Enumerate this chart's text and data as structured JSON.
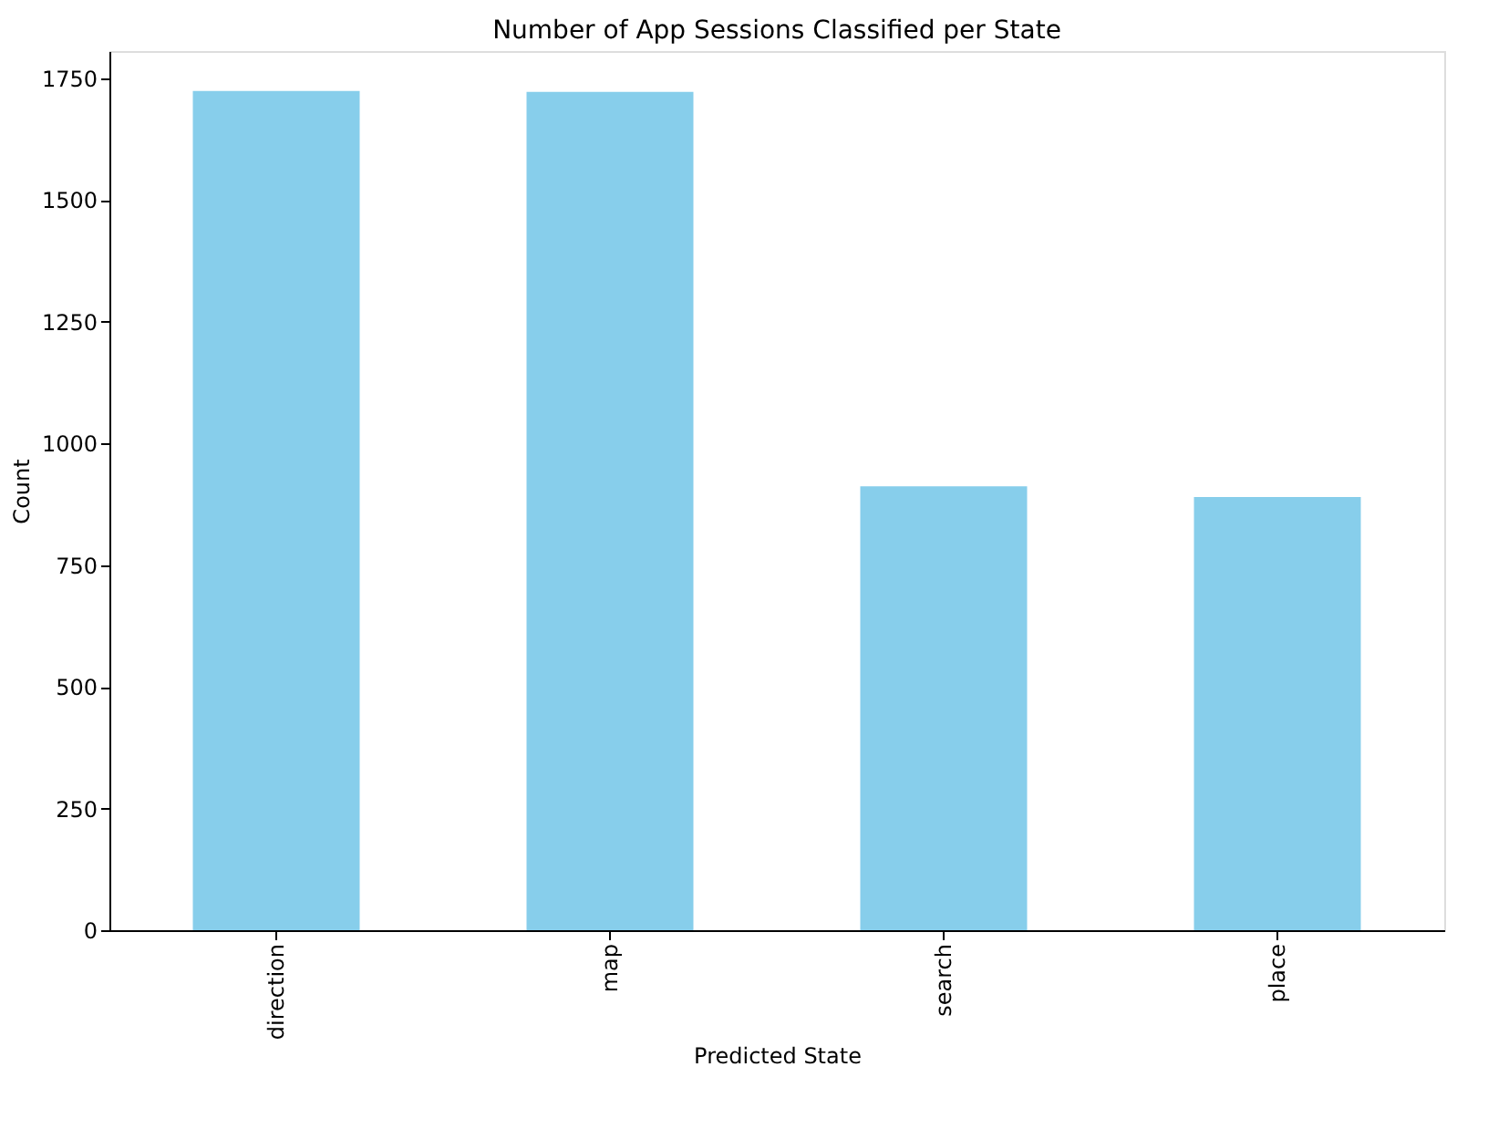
{
  "chart_data": {
    "type": "bar",
    "title": "Number of App Sessions Classified per State",
    "xlabel": "Predicted State",
    "ylabel": "Count",
    "categories": [
      "direction",
      "map",
      "search",
      "place"
    ],
    "values": [
      1724,
      1722,
      912,
      890
    ],
    "color": "#87ceeb",
    "ylim": [
      0,
      1806
    ],
    "yticks": [
      0,
      250,
      500,
      750,
      1000,
      1250,
      1500,
      1750
    ],
    "grid": false
  }
}
